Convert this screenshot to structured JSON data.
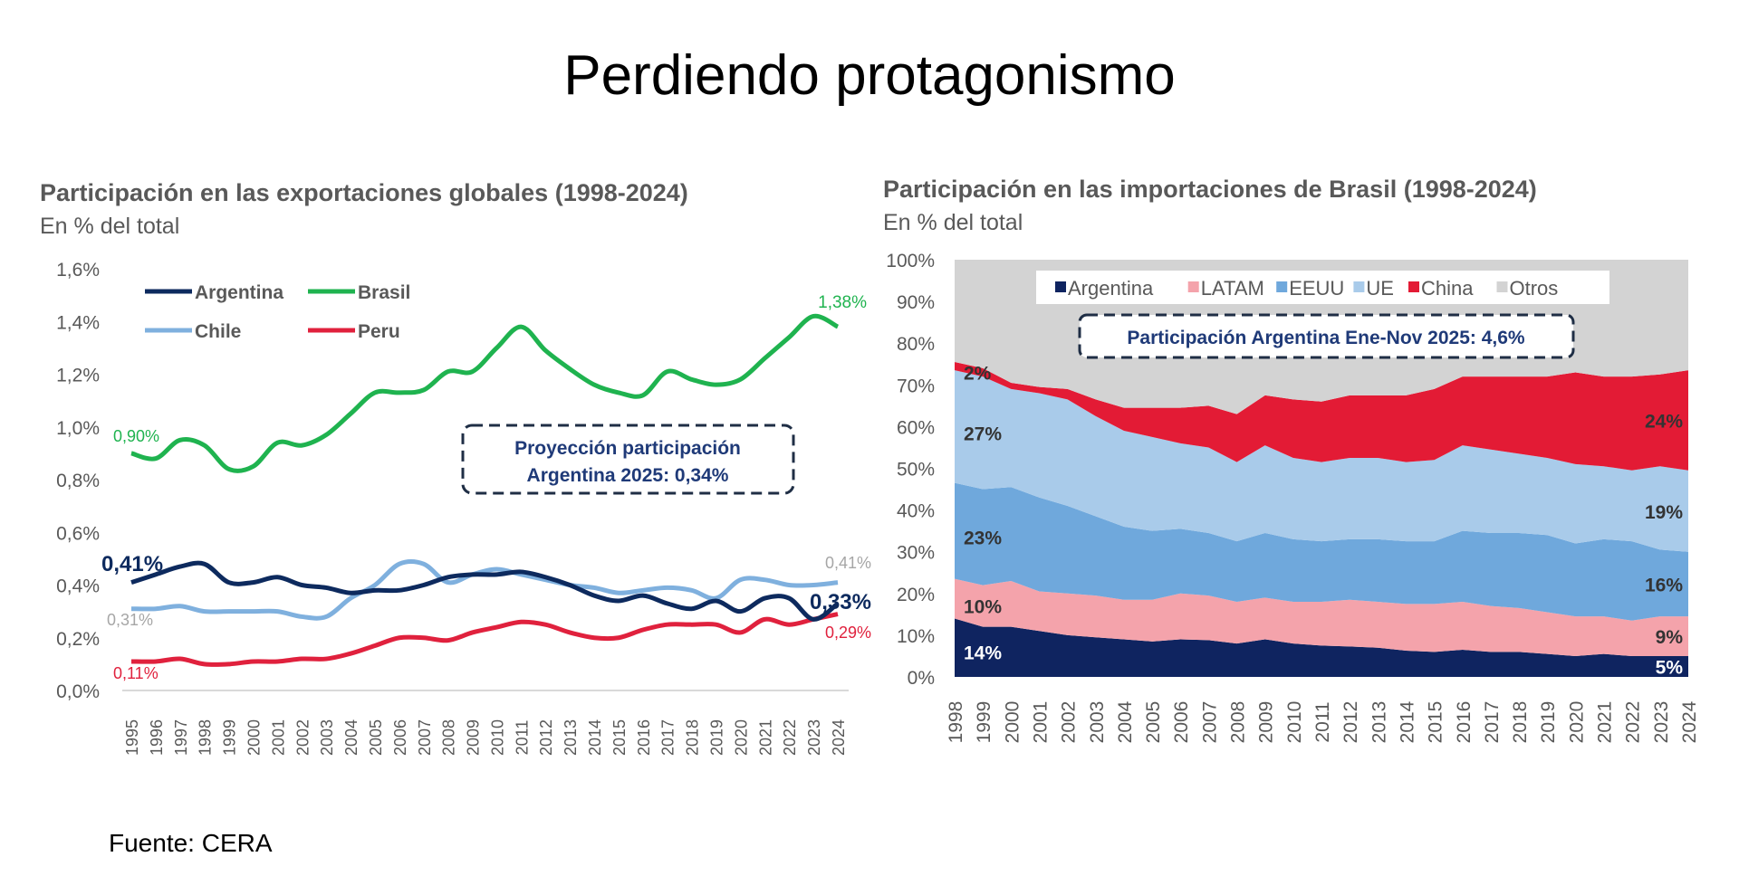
{
  "title": "Perdiendo protagonismo",
  "source": "Fuente: CERA",
  "chart_data": [
    {
      "type": "line",
      "title": "Participación en las exportaciones globales (1998-2024)",
      "subtitle": "En % del total",
      "x": [
        1995,
        1996,
        1997,
        1998,
        1999,
        2000,
        2001,
        2002,
        2003,
        2004,
        2005,
        2006,
        2007,
        2008,
        2009,
        2010,
        2011,
        2012,
        2013,
        2014,
        2015,
        2016,
        2017,
        2018,
        2019,
        2020,
        2021,
        2022,
        2023,
        2024
      ],
      "ylim": [
        0,
        1.6
      ],
      "yticks": [
        "0,0%",
        "0,2%",
        "0,4%",
        "0,6%",
        "0,8%",
        "1,0%",
        "1,2%",
        "1,4%",
        "1,6%"
      ],
      "legend_position": "top-left",
      "grid": false,
      "series": [
        {
          "name": "Argentina",
          "color": "#0d2a5e",
          "values": [
            0.41,
            0.44,
            0.47,
            0.48,
            0.41,
            0.41,
            0.43,
            0.4,
            0.39,
            0.37,
            0.38,
            0.38,
            0.4,
            0.43,
            0.44,
            0.44,
            0.45,
            0.43,
            0.4,
            0.36,
            0.34,
            0.36,
            0.33,
            0.31,
            0.34,
            0.3,
            0.35,
            0.35,
            0.27,
            0.33
          ]
        },
        {
          "name": "Brasil",
          "color": "#1fb34f",
          "values": [
            0.9,
            0.88,
            0.95,
            0.93,
            0.84,
            0.85,
            0.94,
            0.93,
            0.97,
            1.05,
            1.13,
            1.13,
            1.14,
            1.21,
            1.21,
            1.3,
            1.38,
            1.29,
            1.22,
            1.16,
            1.13,
            1.12,
            1.21,
            1.18,
            1.16,
            1.18,
            1.26,
            1.34,
            1.42,
            1.38
          ]
        },
        {
          "name": "Chile",
          "color": "#7fb0de",
          "values": [
            0.31,
            0.31,
            0.32,
            0.3,
            0.3,
            0.3,
            0.3,
            0.28,
            0.28,
            0.35,
            0.4,
            0.48,
            0.48,
            0.41,
            0.44,
            0.46,
            0.44,
            0.42,
            0.4,
            0.39,
            0.37,
            0.38,
            0.39,
            0.38,
            0.35,
            0.42,
            0.42,
            0.4,
            0.4,
            0.41
          ]
        },
        {
          "name": "Peru",
          "color": "#e0213d",
          "values": [
            0.11,
            0.11,
            0.12,
            0.1,
            0.1,
            0.11,
            0.11,
            0.12,
            0.12,
            0.14,
            0.17,
            0.2,
            0.2,
            0.19,
            0.22,
            0.24,
            0.26,
            0.25,
            0.22,
            0.2,
            0.2,
            0.23,
            0.25,
            0.25,
            0.25,
            0.22,
            0.27,
            0.25,
            0.27,
            0.29
          ]
        }
      ],
      "data_labels": [
        {
          "series": "Argentina",
          "text": "0,41%",
          "at": "start"
        },
        {
          "series": "Argentina",
          "text": "0,33%",
          "at": "end"
        },
        {
          "series": "Brasil",
          "text": "0,90%",
          "at": "start"
        },
        {
          "series": "Brasil",
          "text": "1,38%",
          "at": "end"
        },
        {
          "series": "Chile",
          "text": "0,31%",
          "at": "start"
        },
        {
          "series": "Chile",
          "text": "0,41%",
          "at": "end"
        },
        {
          "series": "Peru",
          "text": "0,11%",
          "at": "start"
        },
        {
          "series": "Peru",
          "text": "0,29%",
          "at": "end"
        }
      ],
      "annotation": [
        "Proyección participación",
        "Argentina 2025: 0,34%"
      ]
    },
    {
      "type": "area",
      "stacked": true,
      "title": "Participación en las importaciones de Brasil (1998-2024)",
      "subtitle": "En % del total",
      "x": [
        1998,
        1999,
        2000,
        2001,
        2002,
        2003,
        2004,
        2005,
        2006,
        2007,
        2008,
        2009,
        2010,
        2011,
        2012,
        2013,
        2014,
        2015,
        2016,
        2017,
        2018,
        2019,
        2020,
        2021,
        2022,
        2023,
        2024
      ],
      "ylim": [
        0,
        100
      ],
      "yticks": [
        "0%",
        "10%",
        "20%",
        "30%",
        "40%",
        "50%",
        "60%",
        "70%",
        "80%",
        "90%",
        "100%"
      ],
      "legend_position": "top",
      "grid": false,
      "series": [
        {
          "name": "Argentina",
          "color": "#0f2460",
          "values": [
            14,
            12,
            12,
            11,
            10,
            9.5,
            9,
            8.5,
            9,
            8.8,
            8,
            9,
            8,
            7.5,
            7.3,
            7,
            6.3,
            6,
            6.5,
            6,
            6,
            5.5,
            5,
            5.5,
            5,
            5,
            5
          ]
        },
        {
          "name": "LATAM",
          "color": "#f4a3ab",
          "values": [
            9.5,
            10,
            11,
            9.5,
            10,
            10,
            9.5,
            10,
            11,
            10.7,
            10,
            10,
            10,
            10.5,
            11.2,
            11,
            11.2,
            11.5,
            11.5,
            11,
            10.5,
            10,
            9.5,
            9,
            8.5,
            9.5,
            9.5
          ]
        },
        {
          "name": "EEUU",
          "color": "#6fa8dc",
          "values": [
            23,
            23,
            22.5,
            22.5,
            21,
            19,
            17.5,
            16.5,
            15.5,
            15,
            14.5,
            15.5,
            15,
            14.5,
            14.5,
            15,
            15,
            15,
            17,
            17.5,
            18,
            18.5,
            17.5,
            18.5,
            19,
            16,
            15.5
          ]
        },
        {
          "name": "UE",
          "color": "#a9cbea",
          "values": [
            27,
            27,
            23.5,
            25,
            25.5,
            24,
            23,
            22.5,
            20.5,
            20.5,
            19,
            21,
            19.5,
            19,
            19.5,
            19.5,
            19,
            19.5,
            20.5,
            20,
            19,
            18.5,
            19,
            17.5,
            17,
            20,
            19.5
          ]
        },
        {
          "name": "China",
          "color": "#e31b35",
          "values": [
            2,
            2,
            1.5,
            1.5,
            2.5,
            4,
            5.5,
            7,
            8.5,
            10,
            11.5,
            12,
            14,
            14.5,
            15,
            15,
            16,
            17,
            16.5,
            17.5,
            18.5,
            19.5,
            22,
            21.5,
            22.5,
            22,
            24
          ]
        },
        {
          "name": "Otros",
          "color": "#d3d3d3",
          "values": [
            24.5,
            26,
            29.5,
            30.5,
            31,
            33.5,
            35.5,
            35.5,
            35.5,
            35,
            37,
            32.5,
            33.5,
            34,
            32.5,
            32.5,
            32.5,
            31,
            28,
            28,
            28,
            28,
            27,
            28,
            28,
            27.5,
            26.5
          ]
        }
      ],
      "data_labels": [
        {
          "series": "Argentina",
          "text": "14%",
          "at": "start"
        },
        {
          "series": "LATAM",
          "text": "10%",
          "at": "start"
        },
        {
          "series": "EEUU",
          "text": "23%",
          "at": "start"
        },
        {
          "series": "UE",
          "text": "27%",
          "at": "start"
        },
        {
          "series": "China",
          "text": "2%",
          "at": "start"
        },
        {
          "series": "Argentina",
          "text": "5%",
          "at": "end"
        },
        {
          "series": "LATAM",
          "text": "9%",
          "at": "end"
        },
        {
          "series": "EEUU",
          "text": "16%",
          "at": "end"
        },
        {
          "series": "UE",
          "text": "19%",
          "at": "end"
        },
        {
          "series": "China",
          "text": "24%",
          "at": "end"
        }
      ],
      "annotation": [
        "Participación Argentina Ene-Nov 2025: 4,6%"
      ]
    }
  ]
}
